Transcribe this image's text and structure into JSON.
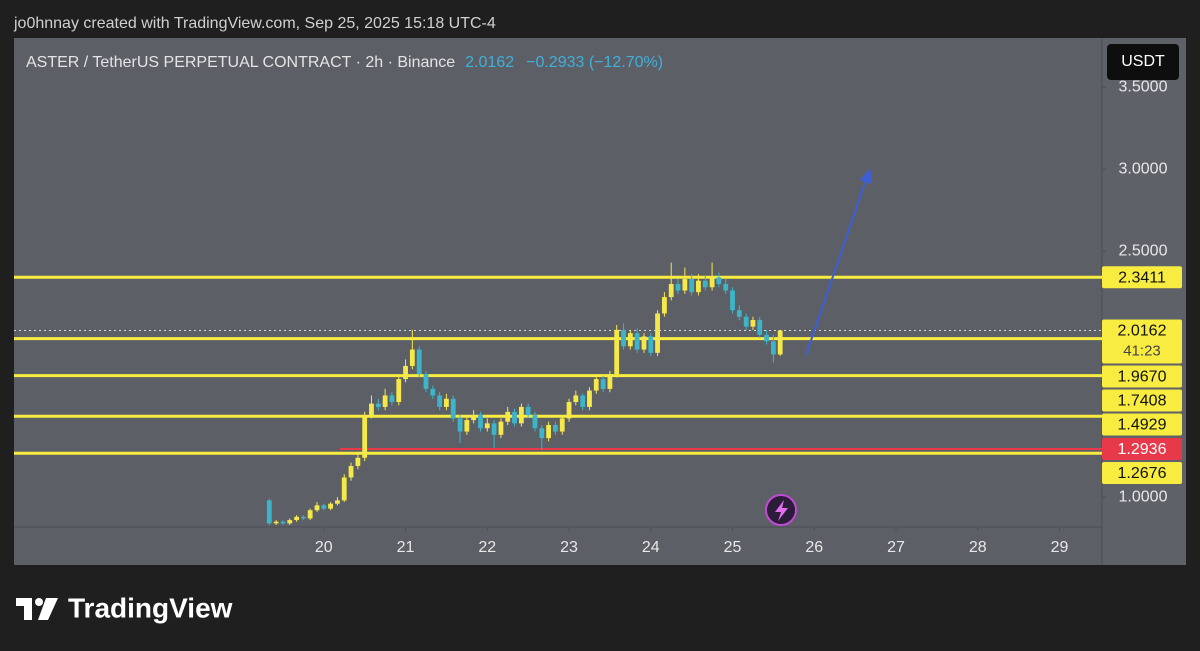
{
  "caption": "jo0hnnay created with TradingView.com, Sep 25, 2025 15:18 UTC-4",
  "branding": "TradingView",
  "chart_data": {
    "type": "candlestick",
    "title": "ASTER / TetherUS PERPETUAL CONTRACT · 2h · Binance",
    "change_text": "−0.2933 (−12.70%)",
    "currency": "USDT",
    "up_color": "#f5e84a",
    "down_color": "#3db4c8",
    "x": [
      19.333,
      19.417,
      19.5,
      19.583,
      19.667,
      19.75,
      19.833,
      19.917,
      20,
      20.083,
      20.167,
      20.25,
      20.333,
      20.417,
      20.5,
      20.583,
      20.667,
      20.75,
      20.833,
      20.917,
      21,
      21.083,
      21.167,
      21.25,
      21.333,
      21.417,
      21.5,
      21.583,
      21.667,
      21.75,
      21.833,
      21.917,
      22,
      22.083,
      22.167,
      22.25,
      22.333,
      22.417,
      22.5,
      22.583,
      22.667,
      22.75,
      22.833,
      22.917,
      23,
      23.083,
      23.167,
      23.25,
      23.333,
      23.417,
      23.5,
      23.583,
      23.667,
      23.75,
      23.833,
      23.917,
      24,
      24.083,
      24.167,
      24.25,
      24.333,
      24.417,
      24.5,
      24.583,
      24.667,
      24.75,
      24.833,
      24.917,
      25,
      25.083,
      25.167,
      25.25,
      25.333,
      25.417,
      25.5,
      25.583
    ],
    "open": [
      0.98,
      0.84,
      0.85,
      0.84,
      0.86,
      0.88,
      0.87,
      0.92,
      0.95,
      0.93,
      0.96,
      0.98,
      1.12,
      1.19,
      1.24,
      1.5,
      1.57,
      1.55,
      1.62,
      1.58,
      1.72,
      1.8,
      1.9,
      1.75,
      1.66,
      1.62,
      1.55,
      1.6,
      1.48,
      1.4,
      1.47,
      1.5,
      1.42,
      1.45,
      1.38,
      1.46,
      1.52,
      1.45,
      1.55,
      1.5,
      1.42,
      1.36,
      1.44,
      1.4,
      1.48,
      1.58,
      1.62,
      1.55,
      1.65,
      1.72,
      1.66,
      1.75,
      2.02,
      1.92,
      2.0,
      1.9,
      1.98,
      1.88,
      2.12,
      2.22,
      2.3,
      2.26,
      2.33,
      2.25,
      2.32,
      2.28,
      2.34,
      2.3,
      2.26,
      2.14,
      2.1,
      2.04,
      2.08,
      1.99,
      1.95,
      1.87
    ],
    "high": [
      0.99,
      0.86,
      0.86,
      0.87,
      0.89,
      0.89,
      0.93,
      0.97,
      0.96,
      0.97,
      1.0,
      1.14,
      1.21,
      1.26,
      1.52,
      1.62,
      1.6,
      1.66,
      1.64,
      1.74,
      1.84,
      2.02,
      1.92,
      1.77,
      1.68,
      1.64,
      1.63,
      1.62,
      1.5,
      1.49,
      1.53,
      1.52,
      1.48,
      1.47,
      1.48,
      1.55,
      1.54,
      1.57,
      1.57,
      1.52,
      1.44,
      1.46,
      1.46,
      1.5,
      1.6,
      1.65,
      1.63,
      1.67,
      1.74,
      1.74,
      1.77,
      2.05,
      2.06,
      2.02,
      2.03,
      2.0,
      2.0,
      2.14,
      2.25,
      2.43,
      2.33,
      2.4,
      2.36,
      2.36,
      2.35,
      2.43,
      2.37,
      2.33,
      2.28,
      2.17,
      2.12,
      2.1,
      2.1,
      2.02,
      1.99,
      2.02
    ],
    "low": [
      0.83,
      0.83,
      0.83,
      0.83,
      0.85,
      0.86,
      0.86,
      0.91,
      0.92,
      0.92,
      0.95,
      0.97,
      1.1,
      1.17,
      1.22,
      1.48,
      1.53,
      1.53,
      1.56,
      1.56,
      1.7,
      1.78,
      1.73,
      1.64,
      1.6,
      1.53,
      1.53,
      1.46,
      1.33,
      1.38,
      1.45,
      1.4,
      1.4,
      1.3,
      1.36,
      1.44,
      1.43,
      1.43,
      1.48,
      1.4,
      1.29,
      1.34,
      1.38,
      1.38,
      1.46,
      1.56,
      1.53,
      1.53,
      1.63,
      1.64,
      1.64,
      1.73,
      1.9,
      1.9,
      1.88,
      1.88,
      1.86,
      1.86,
      2.1,
      2.2,
      2.24,
      2.24,
      2.23,
      2.23,
      2.26,
      2.26,
      2.28,
      2.24,
      2.12,
      2.08,
      2.02,
      2.02,
      1.97,
      1.93,
      1.82,
      1.86
    ],
    "close": [
      0.84,
      0.85,
      0.84,
      0.86,
      0.88,
      0.87,
      0.92,
      0.95,
      0.93,
      0.96,
      0.98,
      1.12,
      1.19,
      1.24,
      1.5,
      1.57,
      1.55,
      1.62,
      1.58,
      1.72,
      1.8,
      1.9,
      1.75,
      1.66,
      1.62,
      1.55,
      1.6,
      1.48,
      1.4,
      1.47,
      1.5,
      1.42,
      1.45,
      1.38,
      1.46,
      1.52,
      1.45,
      1.55,
      1.5,
      1.42,
      1.36,
      1.44,
      1.4,
      1.48,
      1.58,
      1.62,
      1.55,
      1.65,
      1.72,
      1.66,
      1.75,
      2.02,
      1.92,
      2.0,
      1.9,
      1.98,
      1.88,
      2.12,
      2.22,
      2.3,
      2.26,
      2.33,
      2.25,
      2.32,
      2.28,
      2.34,
      2.3,
      2.26,
      2.14,
      2.1,
      2.04,
      2.08,
      1.99,
      1.95,
      1.87,
      2.0162
    ],
    "xlim": [
      16.21,
      29.52
    ],
    "xticks": [
      20,
      21,
      22,
      23,
      24,
      25,
      26,
      27,
      28,
      29
    ],
    "ylim": [
      0.83,
      3.8
    ],
    "yticks": [
      {
        "value": 1,
        "label": "1.0000"
      },
      {
        "value": 2.5,
        "label": "2.5000"
      },
      {
        "value": 3,
        "label": "3.0000"
      },
      {
        "value": 3.5,
        "label": "3.5000"
      }
    ],
    "level_color": "#f7ec3f",
    "levels": [
      {
        "value": 2.3411,
        "label": "2.3411"
      },
      {
        "value": 1.967,
        "label": "1.9670"
      },
      {
        "value": 1.7408,
        "label": "1.7408"
      },
      {
        "value": 1.4929,
        "label": "1.4929"
      },
      {
        "value": 1.2676,
        "label": "1.2676"
      }
    ],
    "support": {
      "value": 1.2936,
      "label": "1.2936",
      "color": "#e8394a"
    },
    "last_price": {
      "value": 2.0162,
      "label": "2.0162",
      "countdown": "41:23"
    }
  }
}
